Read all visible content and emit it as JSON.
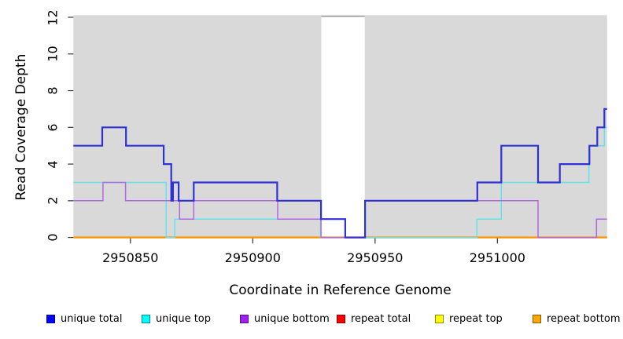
{
  "figure": {
    "background": "#ffffff",
    "panel_background": "#d9d9d9",
    "tick_color": "#333333",
    "text_color": "#000000"
  },
  "chart_data": {
    "type": "line",
    "subtype": "step",
    "title": "",
    "xlabel": "Coordinate in Reference Genome",
    "ylabel": "Read Coverage Depth",
    "xlim": [
      2950826.7,
      2951044.8
    ],
    "ylim": [
      0,
      12
    ],
    "x_ticks": [
      2950850,
      2950900,
      2950950,
      2951000
    ],
    "y_ticks": [
      0,
      2,
      4,
      6,
      8,
      10,
      12
    ],
    "grid": false,
    "legend_position": "bottom",
    "masked_region": {
      "x_start": 2950928.0,
      "x_end": 2950945.8,
      "fill": "#ffffff",
      "top_border": "#9a9a9a"
    },
    "series": [
      {
        "name": "unique total",
        "line_color": "#3030d8",
        "legend_color": "#0000ff",
        "line_width": 2.2,
        "z": 6,
        "steps": [
          [
            2950826.7,
            5
          ],
          [
            2950838.5,
            6
          ],
          [
            2950848.2,
            5
          ],
          [
            2950863.6,
            4
          ],
          [
            2950866.7,
            2
          ],
          [
            2950867.4,
            3
          ],
          [
            2950869.7,
            2
          ],
          [
            2950875.9,
            3
          ],
          [
            2950910.0,
            2
          ],
          [
            2950927.9,
            1
          ],
          [
            2950937.8,
            0
          ],
          [
            2950945.9,
            2
          ],
          [
            2950991.8,
            3
          ],
          [
            2951001.6,
            5
          ],
          [
            2951016.6,
            3
          ],
          [
            2951025.5,
            4
          ],
          [
            2951037.6,
            5
          ],
          [
            2951040.8,
            6
          ],
          [
            2951043.7,
            7
          ]
        ]
      },
      {
        "name": "unique top",
        "line_color": "#63e3e9",
        "legend_color": "#00ffff",
        "line_width": 1.5,
        "z": 4,
        "steps": [
          [
            2950826.7,
            3
          ],
          [
            2950864.6,
            0
          ],
          [
            2950868.1,
            1
          ],
          [
            2950927.7,
            0
          ],
          [
            2950991.6,
            1
          ],
          [
            2951001.6,
            3
          ],
          [
            2951037.4,
            5
          ],
          [
            2951043.7,
            6
          ]
        ]
      },
      {
        "name": "unique bottom",
        "line_color": "#b069e2",
        "legend_color": "#a020f0",
        "line_width": 1.5,
        "z": 5,
        "steps": [
          [
            2950826.7,
            2
          ],
          [
            2950838.8,
            3
          ],
          [
            2950848.0,
            2
          ],
          [
            2950870.1,
            1
          ],
          [
            2950875.9,
            2
          ],
          [
            2950910.2,
            1
          ],
          [
            2950927.9,
            0
          ],
          [
            2950945.9,
            2
          ],
          [
            2951016.6,
            0
          ],
          [
            2951040.5,
            1
          ]
        ]
      },
      {
        "name": "repeat total",
        "line_color": "#dd1111",
        "legend_color": "#ff0000",
        "line_width": 1.5,
        "z": 1,
        "steps": [
          [
            2950826.7,
            0
          ]
        ]
      },
      {
        "name": "repeat top",
        "line_color": "#e8e800",
        "legend_color": "#ffff00",
        "line_width": 1.5,
        "z": 2,
        "steps": [
          [
            2950826.7,
            0
          ]
        ]
      },
      {
        "name": "repeat bottom",
        "line_color": "#ff9300",
        "legend_color": "#ffa500",
        "line_width": 2.4,
        "z": 3,
        "steps": [
          [
            2950826.7,
            0
          ]
        ]
      }
    ]
  }
}
